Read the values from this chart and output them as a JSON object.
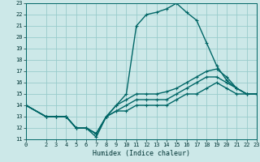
{
  "xlabel": "Humidex (Indice chaleur)",
  "bg_color": "#cce8e8",
  "grid_color": "#99cccc",
  "line_color": "#006666",
  "marker": "+",
  "xlim": [
    0,
    23
  ],
  "ylim": [
    11,
    23
  ],
  "xticks": [
    0,
    2,
    3,
    4,
    5,
    6,
    7,
    8,
    9,
    10,
    11,
    12,
    13,
    14,
    15,
    16,
    17,
    18,
    19,
    20,
    21,
    22,
    23
  ],
  "yticks": [
    11,
    12,
    13,
    14,
    15,
    16,
    17,
    18,
    19,
    20,
    21,
    22,
    23
  ],
  "lines": [
    {
      "x": [
        0,
        2,
        3,
        4,
        5,
        6,
        7,
        8,
        9,
        10,
        11,
        12,
        13,
        14,
        15,
        16,
        17,
        18,
        19,
        20,
        21,
        22,
        23
      ],
      "y": [
        14,
        13,
        13,
        13,
        12,
        12,
        11.2,
        13,
        14,
        15,
        21,
        22,
        22.2,
        22.5,
        23,
        22.2,
        21.5,
        19.5,
        17.5,
        16.2,
        15.5,
        15,
        15
      ]
    },
    {
      "x": [
        0,
        2,
        3,
        4,
        5,
        6,
        7,
        8,
        9,
        10,
        11,
        12,
        13,
        14,
        15,
        16,
        17,
        18,
        19,
        20,
        21,
        22,
        23
      ],
      "y": [
        14,
        13,
        13,
        13,
        12,
        12,
        11.5,
        13,
        14,
        14.5,
        15,
        15,
        15,
        15.2,
        15.5,
        16,
        16.5,
        17,
        17.2,
        16.5,
        15.5,
        15,
        15
      ]
    },
    {
      "x": [
        0,
        2,
        3,
        4,
        5,
        6,
        7,
        8,
        9,
        10,
        11,
        12,
        13,
        14,
        15,
        16,
        17,
        18,
        19,
        20,
        21,
        22,
        23
      ],
      "y": [
        14,
        13,
        13,
        13,
        12,
        12,
        11.5,
        13,
        13.5,
        14,
        14.5,
        14.5,
        14.5,
        14.5,
        15,
        15.5,
        16,
        16.5,
        16.5,
        16,
        15.5,
        15,
        15
      ]
    },
    {
      "x": [
        0,
        2,
        3,
        4,
        5,
        6,
        7,
        8,
        9,
        10,
        11,
        12,
        13,
        14,
        15,
        16,
        17,
        18,
        19,
        20,
        21,
        22,
        23
      ],
      "y": [
        14,
        13,
        13,
        13,
        12,
        12,
        11.5,
        13,
        13.5,
        13.5,
        14,
        14,
        14,
        14,
        14.5,
        15,
        15,
        15.5,
        16,
        15.5,
        15,
        15,
        15
      ]
    }
  ]
}
